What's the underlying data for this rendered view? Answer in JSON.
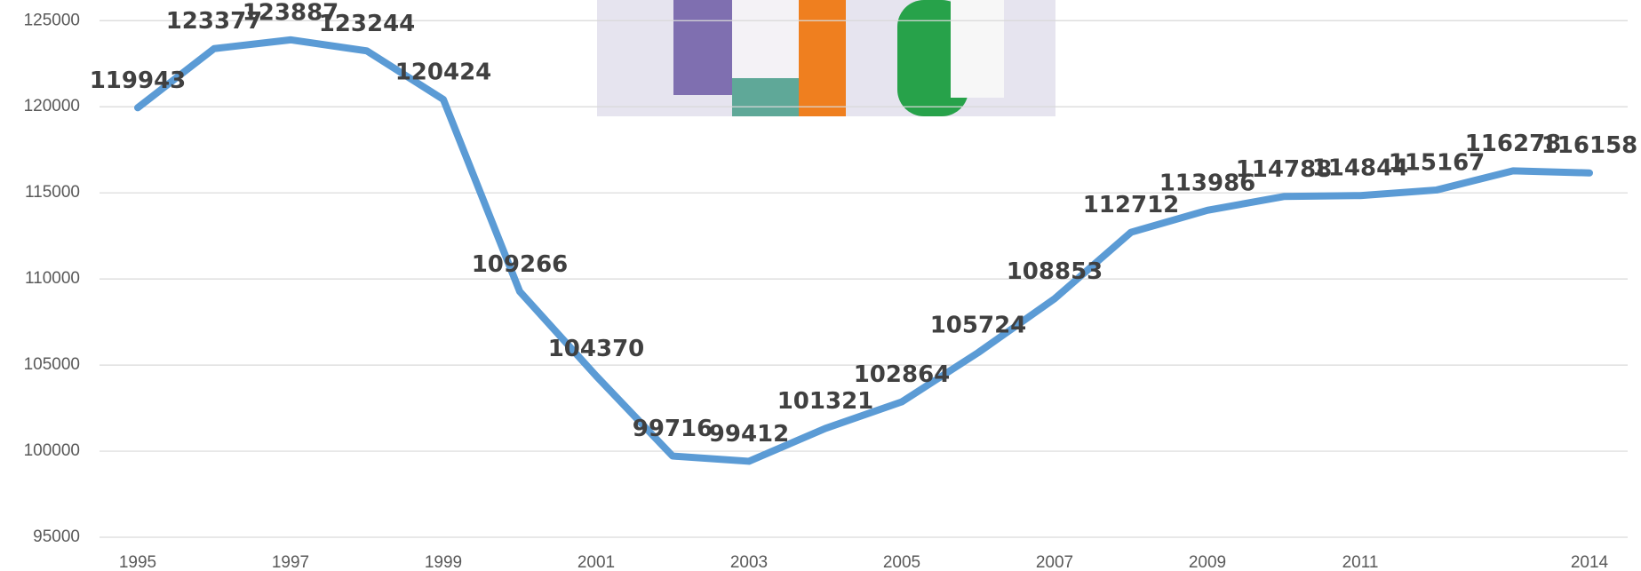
{
  "chart_data": {
    "type": "line",
    "x": [
      1995,
      1996,
      1997,
      1998,
      1999,
      2000,
      2001,
      2002,
      2003,
      2004,
      2005,
      2006,
      2007,
      2008,
      2009,
      2010,
      2011,
      2012,
      2013,
      2014
    ],
    "series": [
      {
        "color": "#5b9bd5",
        "values": [
          119943,
          123377,
          123887,
          123244,
          120424,
          109266,
          104370,
          99716,
          99412,
          101321,
          102864,
          105724,
          108853,
          112712,
          113986,
          114788,
          114844,
          115167,
          116278,
          116158
        ]
      }
    ],
    "xlim": [
      1995,
      2014
    ],
    "xticks": [
      1995,
      1997,
      1999,
      2001,
      2003,
      2005,
      2007,
      2009,
      2011,
      2014
    ],
    "ylim": [
      95000,
      126200
    ],
    "yticks": [
      95000,
      100000,
      105000,
      110000,
      115000,
      120000,
      125000
    ],
    "grid": true,
    "data_labels": true
  }
}
